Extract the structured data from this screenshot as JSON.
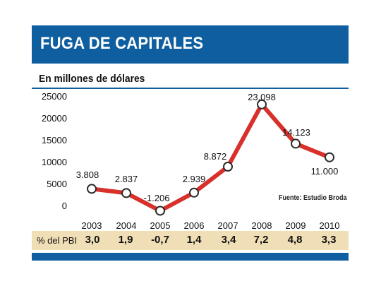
{
  "header": {
    "title": "FUGA DE CAPITALES",
    "subtitle": "En millones de dólares"
  },
  "source": "Fuente: Estudio Broda",
  "pbi": {
    "label": "% del PBI",
    "values": [
      "3,0",
      "1,9",
      "-0,7",
      "1,4",
      "3,4",
      "7,2",
      "4,8",
      "3,3"
    ]
  },
  "colors": {
    "banner": "#0f5fa0",
    "line": "#d8302a",
    "band": "#f0dfb6"
  },
  "chart_data": {
    "type": "line",
    "title": "FUGA DE CAPITALES",
    "subtitle": "En millones de dólares",
    "x": [
      "2003",
      "2004",
      "2005",
      "2006",
      "2007",
      "2008",
      "2009",
      "2010"
    ],
    "series": [
      {
        "values": [
          3808,
          2837,
          -1206,
          2939,
          8872,
          23098,
          14123,
          11000
        ],
        "labels": [
          "3.808",
          "2.837",
          "-1.206",
          "2.939",
          "8.872",
          "23.098",
          "14.123",
          "11.000"
        ]
      }
    ],
    "y_ticks": [
      "25000",
      "20000",
      "15000",
      "10000",
      "5000",
      "0"
    ],
    "y_tick_values": [
      25000,
      20000,
      15000,
      10000,
      5000,
      0
    ],
    "ylim": [
      -2500,
      25000
    ],
    "grid": false,
    "legend": "none"
  }
}
